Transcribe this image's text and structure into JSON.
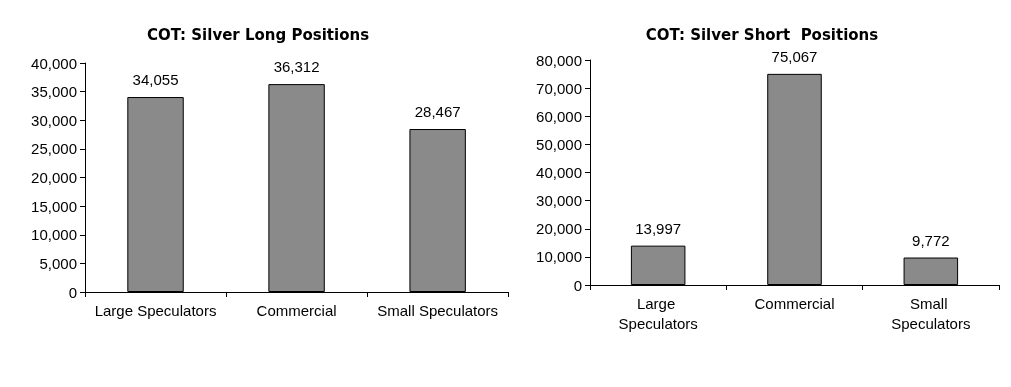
{
  "chart_data": [
    {
      "type": "bar",
      "title": "COT: Silver Long Positions",
      "categories": [
        "Large Speculators",
        "Commercial",
        "Small Speculators"
      ],
      "values": [
        34055,
        36312,
        28467
      ],
      "color": "#8a8a8a",
      "ylim": [
        0,
        40000
      ],
      "yticks": [
        {
          "value": 0,
          "label": "0"
        },
        {
          "value": 5000,
          "label": "5,000"
        },
        {
          "value": 10000,
          "label": "10,000"
        },
        {
          "value": 15000,
          "label": "15,000"
        },
        {
          "value": 20000,
          "label": "20,000"
        },
        {
          "value": 25000,
          "label": "25,000"
        },
        {
          "value": 30000,
          "label": "30,000"
        },
        {
          "value": 35000,
          "label": "35,000"
        },
        {
          "value": 40000,
          "label": "40,000"
        }
      ],
      "value_labels": [
        "34,055",
        "36,312",
        "28,467"
      ],
      "grid": false
    },
    {
      "type": "bar",
      "title": "COT: Silver Short  Positions",
      "categories": [
        "Large Speculators",
        "Commercial",
        "Small Speculators"
      ],
      "values": [
        13997,
        75067,
        9772
      ],
      "color": "#8a8a8a",
      "ylim": [
        0,
        80000
      ],
      "yticks": [
        {
          "value": 0,
          "label": "0"
        },
        {
          "value": 10000,
          "label": "10,000"
        },
        {
          "value": 20000,
          "label": "20,000"
        },
        {
          "value": 30000,
          "label": "30,000"
        },
        {
          "value": 40000,
          "label": "40,000"
        },
        {
          "value": 50000,
          "label": "50,000"
        },
        {
          "value": 60000,
          "label": "60,000"
        },
        {
          "value": 70000,
          "label": "70,000"
        },
        {
          "value": 80000,
          "label": "80,000"
        }
      ],
      "value_labels": [
        "13,997",
        "75,067",
        "9,772"
      ],
      "grid": false
    }
  ]
}
